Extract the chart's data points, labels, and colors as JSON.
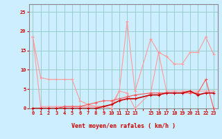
{
  "xlabel": "Vent moyen/en rafales ( km/h )",
  "x": [
    0,
    1,
    2,
    3,
    4,
    5,
    6,
    7,
    8,
    9,
    10,
    11,
    12,
    13,
    15,
    16,
    17,
    18,
    19,
    20,
    21,
    22,
    23
  ],
  "line1": [
    18.5,
    8.0,
    7.5,
    7.5,
    7.5,
    7.5,
    2.0,
    1.0,
    0.5,
    0.5,
    0.0,
    4.5,
    4.0,
    0.0,
    4.0,
    14.5,
    13.5,
    11.5,
    11.5,
    14.5,
    14.5,
    18.5,
    14.0
  ],
  "line2": [
    18.5,
    0.5,
    0.5,
    0.5,
    0.5,
    0.5,
    0.5,
    0.5,
    0.5,
    0.5,
    1.0,
    4.5,
    22.5,
    4.5,
    18.0,
    14.5,
    4.5,
    4.5,
    4.5,
    4.5,
    4.5,
    4.5,
    4.5
  ],
  "line3": [
    0.0,
    0.0,
    0.0,
    0.0,
    0.5,
    0.5,
    0.5,
    1.0,
    1.5,
    2.0,
    2.0,
    2.5,
    3.0,
    3.5,
    4.0,
    4.0,
    4.0,
    4.0,
    4.0,
    4.0,
    4.0,
    7.5,
    0.0
  ],
  "line4": [
    0.0,
    0.0,
    0.0,
    0.0,
    0.0,
    0.0,
    0.0,
    0.0,
    0.0,
    0.5,
    1.0,
    2.0,
    2.5,
    2.5,
    3.5,
    3.5,
    4.0,
    4.0,
    4.0,
    4.5,
    3.5,
    4.0,
    4.0
  ],
  "ylim": [
    0,
    27
  ],
  "yticks": [
    0,
    5,
    10,
    15,
    20,
    25
  ],
  "bg_color": "#cceeff",
  "grid_color": "#99cccc",
  "line1_color": "#ff9999",
  "line2_color": "#ff5555",
  "line3_color": "#cc0000",
  "line4_color": "#880000",
  "label_color": "#cc0000"
}
